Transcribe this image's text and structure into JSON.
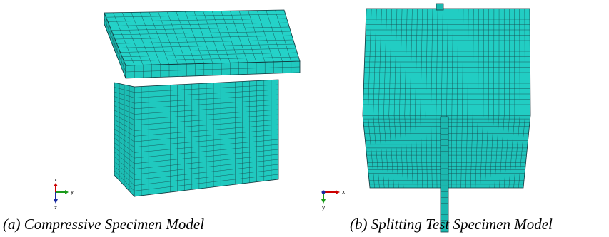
{
  "figure": {
    "panels": [
      {
        "caption": "(a) Compressive Specimen Model",
        "axes": {
          "x": "x",
          "y": "y",
          "z": "z"
        }
      },
      {
        "caption": "(b) Splitting Test Specimen Model",
        "axes": {
          "x": "x",
          "y": "y"
        }
      }
    ]
  }
}
